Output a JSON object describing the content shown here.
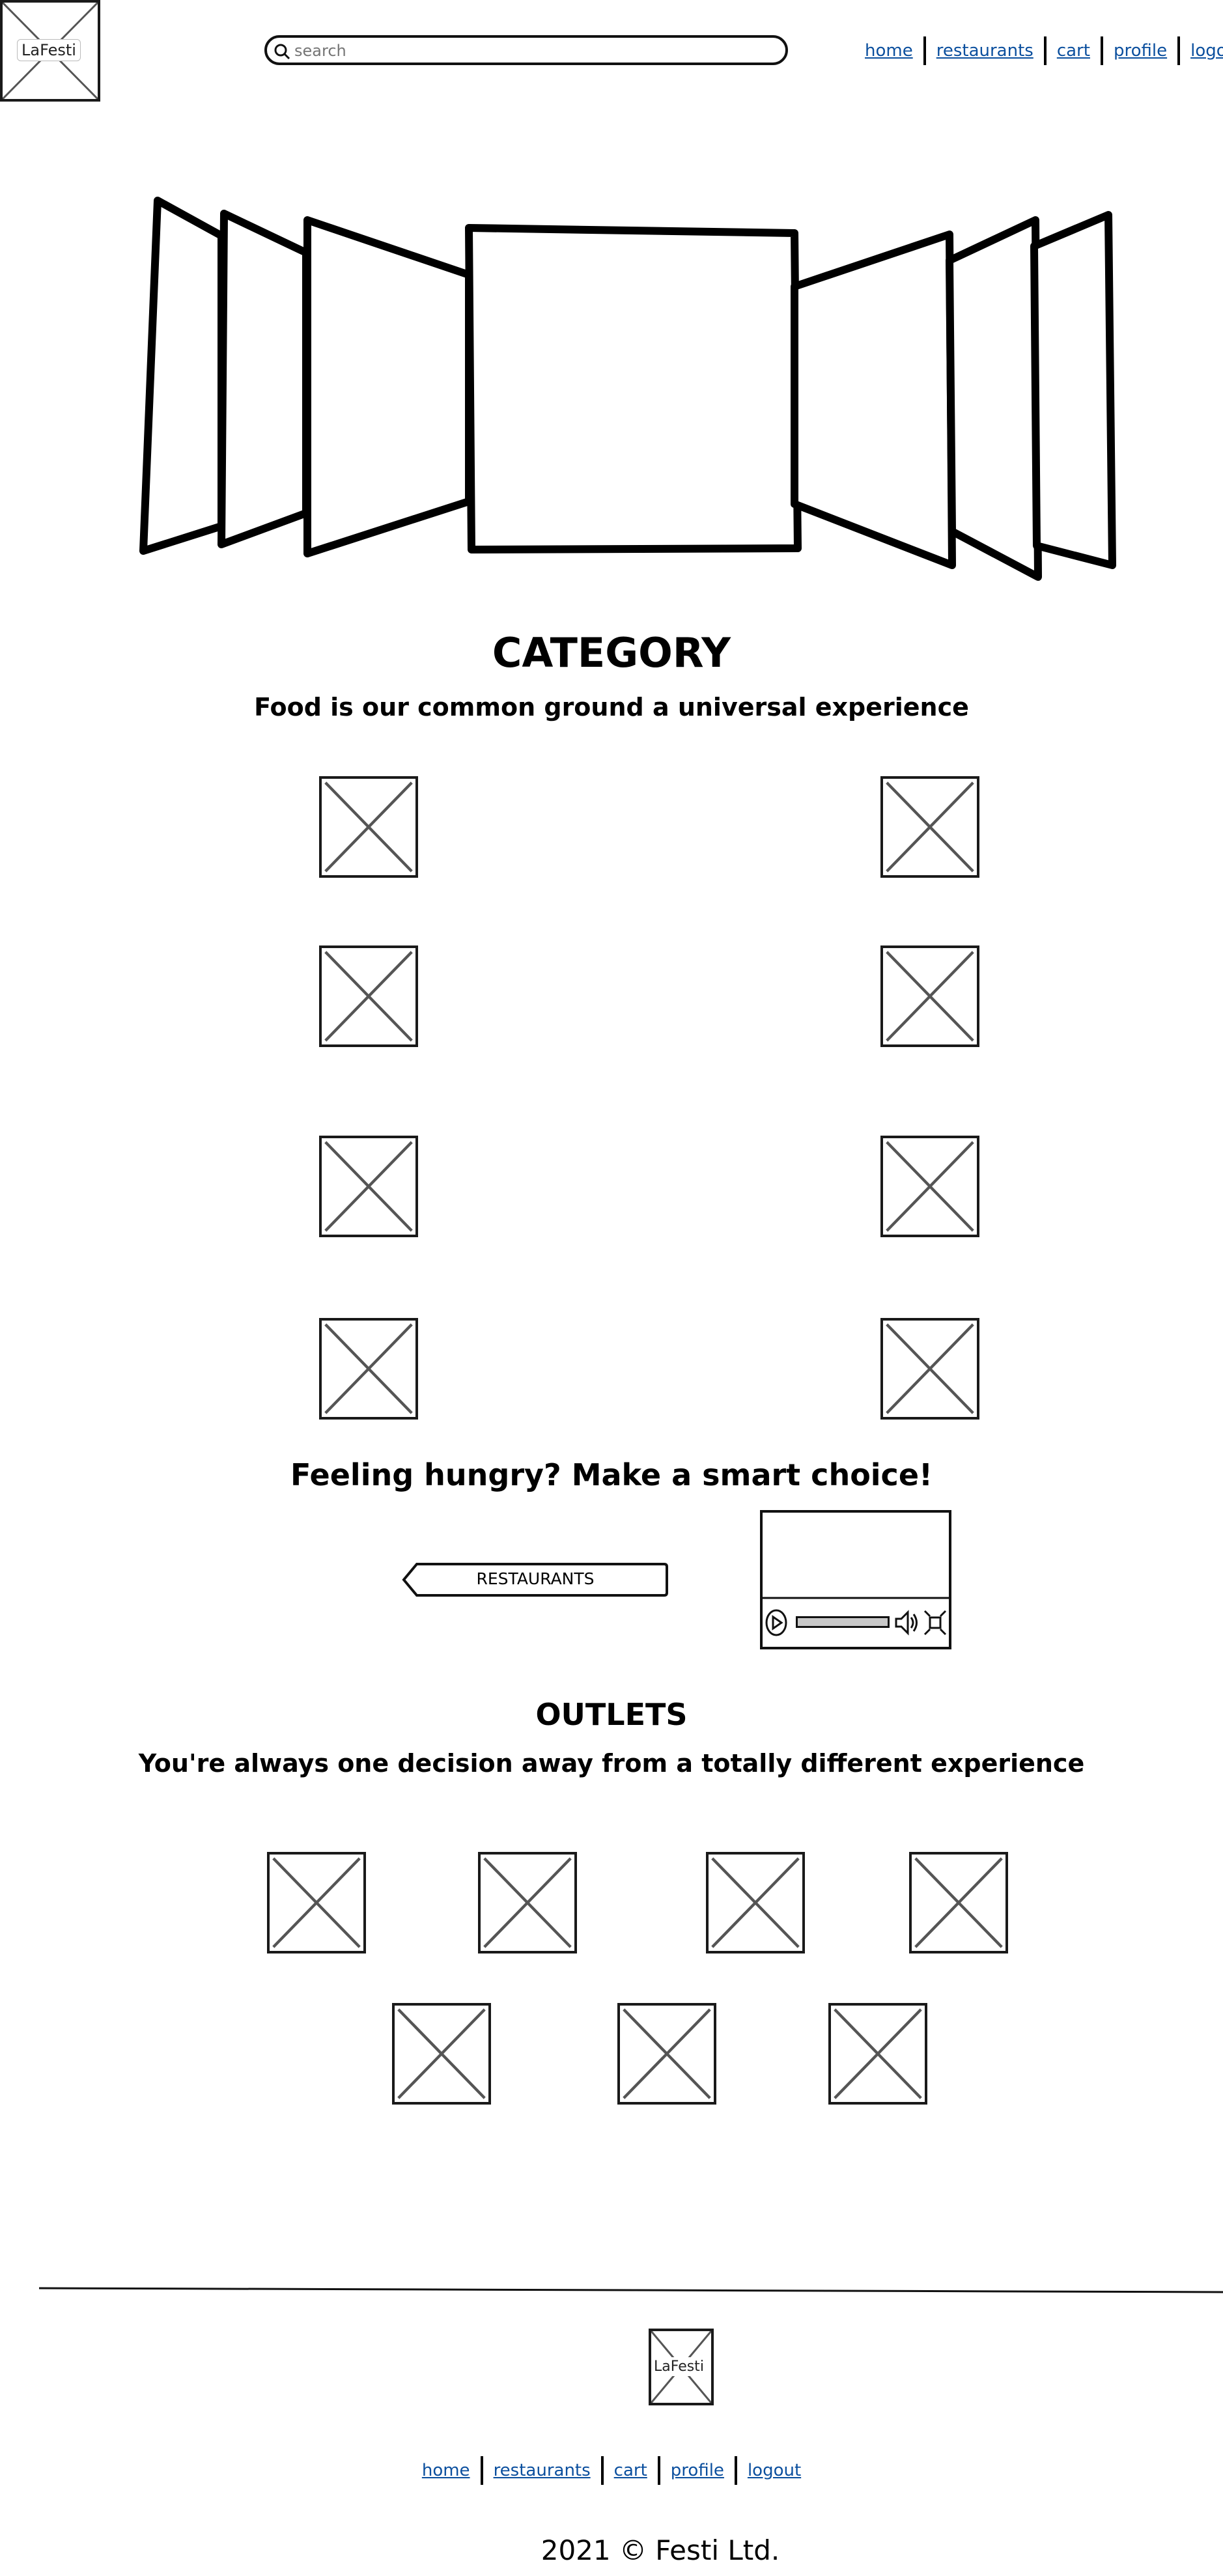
{
  "header": {
    "logo_label": "LaFesti",
    "search_placeholder": "search",
    "search_icon": "search-icon",
    "nav": [
      "home",
      "restaurants",
      "cart",
      "profile",
      "logout"
    ]
  },
  "category": {
    "title": "CATEGORY",
    "subtitle": "Food is our common ground a universal experience"
  },
  "cta": {
    "heading": "Feeling hungry? Make a smart choice!",
    "button_label": "RESTAURANTS"
  },
  "outlets": {
    "title": "OUTLETS",
    "subtitle": "You're always one decision away from a totally different experience"
  },
  "footer": {
    "logo_label": "LaFesti",
    "nav": [
      "home",
      "restaurants",
      "cart",
      "profile",
      "logout"
    ],
    "copyright": "2021 © Festi Ltd."
  }
}
